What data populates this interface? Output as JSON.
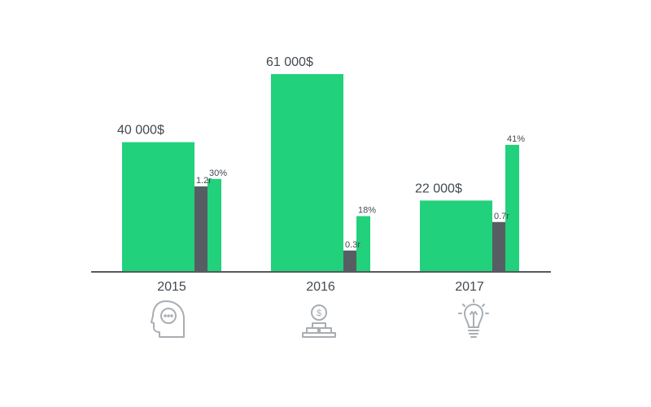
{
  "chart_data": {
    "type": "bar",
    "categories": [
      "2015",
      "2016",
      "2017"
    ],
    "series": [
      {
        "values": [
          40000,
          61000,
          22000
        ],
        "labels": [
          "40 000$",
          "61 000$",
          "22 000$"
        ]
      },
      {
        "values": [
          1.2,
          0.3,
          0.7
        ],
        "labels": [
          "1.2r",
          "0.3r",
          "0.7r"
        ]
      },
      {
        "values": [
          30,
          18,
          41
        ],
        "labels": [
          "30%",
          "18%",
          "41%"
        ]
      }
    ],
    "title": "",
    "xlabel": "",
    "ylabel": "",
    "grid": false,
    "legend": "none",
    "colors": {
      "primary": "#22d17b",
      "secondary": "#575e63",
      "axis": "#555b60",
      "icon": "#a9aeb3"
    },
    "icons": [
      "head-thought-icon",
      "dollar-coin-stack-icon",
      "lightbulb-icon"
    ]
  }
}
